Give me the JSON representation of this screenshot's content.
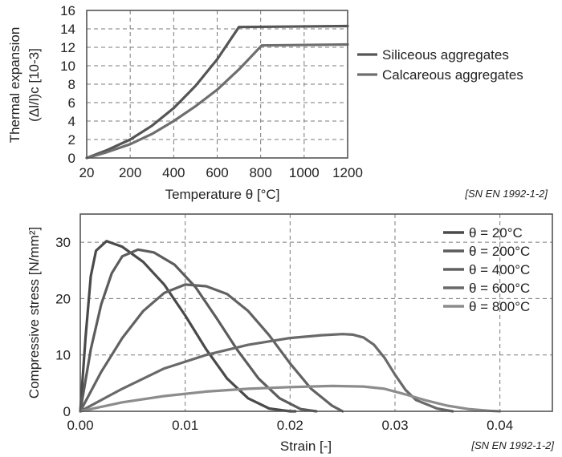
{
  "chart_data": [
    {
      "type": "line",
      "ylabel_line1": "Thermal expansion",
      "ylabel_line2": "(Δl/l)c [10-3]",
      "xlabel": "Temperature θ [°C]",
      "source": "[SN EN 1992-1-2]",
      "x_ticks": [
        "20",
        "200",
        "400",
        "600",
        "800",
        "1000",
        "1200"
      ],
      "x_tick_values": [
        20,
        200,
        400,
        600,
        800,
        1000,
        1200
      ],
      "y_ticks": [
        "0",
        "2",
        "4",
        "6",
        "8",
        "10",
        "12",
        "14",
        "16"
      ],
      "xlim": [
        20,
        1200
      ],
      "ylim": [
        0,
        16
      ],
      "grid": true,
      "legend": "right",
      "colors": {
        "siliceous": "#555555",
        "calcareous": "#6e6e6e"
      },
      "series": [
        {
          "name": "Siliceous aggregates",
          "x": [
            20,
            100,
            200,
            300,
            400,
            500,
            600,
            700,
            1200
          ],
          "y": [
            0,
            0.8,
            2.0,
            3.5,
            5.4,
            7.8,
            10.7,
            14.2,
            14.3
          ]
        },
        {
          "name": "Calcareous aggregates",
          "x": [
            20,
            100,
            200,
            300,
            400,
            500,
            600,
            700,
            805,
            1200
          ],
          "y": [
            0,
            0.6,
            1.5,
            2.6,
            4.0,
            5.6,
            7.4,
            9.6,
            12.2,
            12.3
          ]
        }
      ]
    },
    {
      "type": "line",
      "ylabel": "Compressive stress [N/mm²]",
      "xlabel": "Strain [-]",
      "source": "[SN EN 1992-1-2]",
      "x_ticks": [
        "0.00",
        "0.01",
        "0.02",
        "0.03",
        "0.04"
      ],
      "y_ticks": [
        "0",
        "10",
        "20",
        "30"
      ],
      "xlim": [
        0,
        0.045
      ],
      "ylim": [
        0,
        35
      ],
      "grid": true,
      "legend": "top-right",
      "series": [
        {
          "name": "θ = 20°C",
          "color": "#4a4a4a",
          "x": [
            0,
            0.0005,
            0.001,
            0.0015,
            0.0025,
            0.004,
            0.006,
            0.008,
            0.01,
            0.012,
            0.014,
            0.016,
            0.018,
            0.02,
            0.0205
          ],
          "y": [
            0,
            13,
            24,
            28.5,
            30.2,
            29.2,
            26.5,
            22.5,
            17.0,
            11.0,
            5.8,
            2.3,
            0.5,
            0,
            0
          ]
        },
        {
          "name": "θ = 200°C",
          "color": "#5c5c5c",
          "x": [
            0,
            0.001,
            0.002,
            0.003,
            0.004,
            0.0055,
            0.007,
            0.009,
            0.011,
            0.013,
            0.015,
            0.017,
            0.019,
            0.021,
            0.0225
          ],
          "y": [
            0,
            11,
            19,
            24.5,
            27.5,
            28.7,
            28.2,
            26.0,
            22.0,
            16.5,
            10.8,
            5.8,
            2.3,
            0.4,
            0
          ]
        },
        {
          "name": "θ = 400°C",
          "color": "#626262",
          "x": [
            0,
            0.002,
            0.004,
            0.006,
            0.008,
            0.01,
            0.012,
            0.014,
            0.016,
            0.018,
            0.02,
            0.022,
            0.024,
            0.025
          ],
          "y": [
            0,
            7,
            13,
            17.8,
            21.0,
            22.5,
            22.2,
            20.8,
            17.8,
            13.5,
            8.5,
            4.0,
            1.0,
            0
          ]
        },
        {
          "name": "θ = 600°C",
          "color": "#696969",
          "x": [
            0,
            0.004,
            0.008,
            0.012,
            0.016,
            0.02,
            0.023,
            0.025,
            0.026,
            0.027,
            0.028,
            0.029,
            0.03,
            0.031,
            0.032,
            0.034,
            0.0355
          ],
          "y": [
            0,
            4.0,
            7.6,
            10.0,
            11.8,
            13.0,
            13.5,
            13.7,
            13.6,
            13.1,
            11.8,
            9.5,
            6.5,
            3.8,
            2.0,
            0.5,
            0
          ]
        },
        {
          "name": "θ = 800°C",
          "color": "#8c8c8c",
          "x": [
            0,
            0.004,
            0.008,
            0.012,
            0.016,
            0.02,
            0.024,
            0.027,
            0.029,
            0.031,
            0.033,
            0.035,
            0.037,
            0.039,
            0.04
          ],
          "y": [
            0,
            1.6,
            2.7,
            3.5,
            4.0,
            4.3,
            4.5,
            4.4,
            4.0,
            3.0,
            1.9,
            1.0,
            0.4,
            0.1,
            0
          ]
        }
      ]
    }
  ]
}
